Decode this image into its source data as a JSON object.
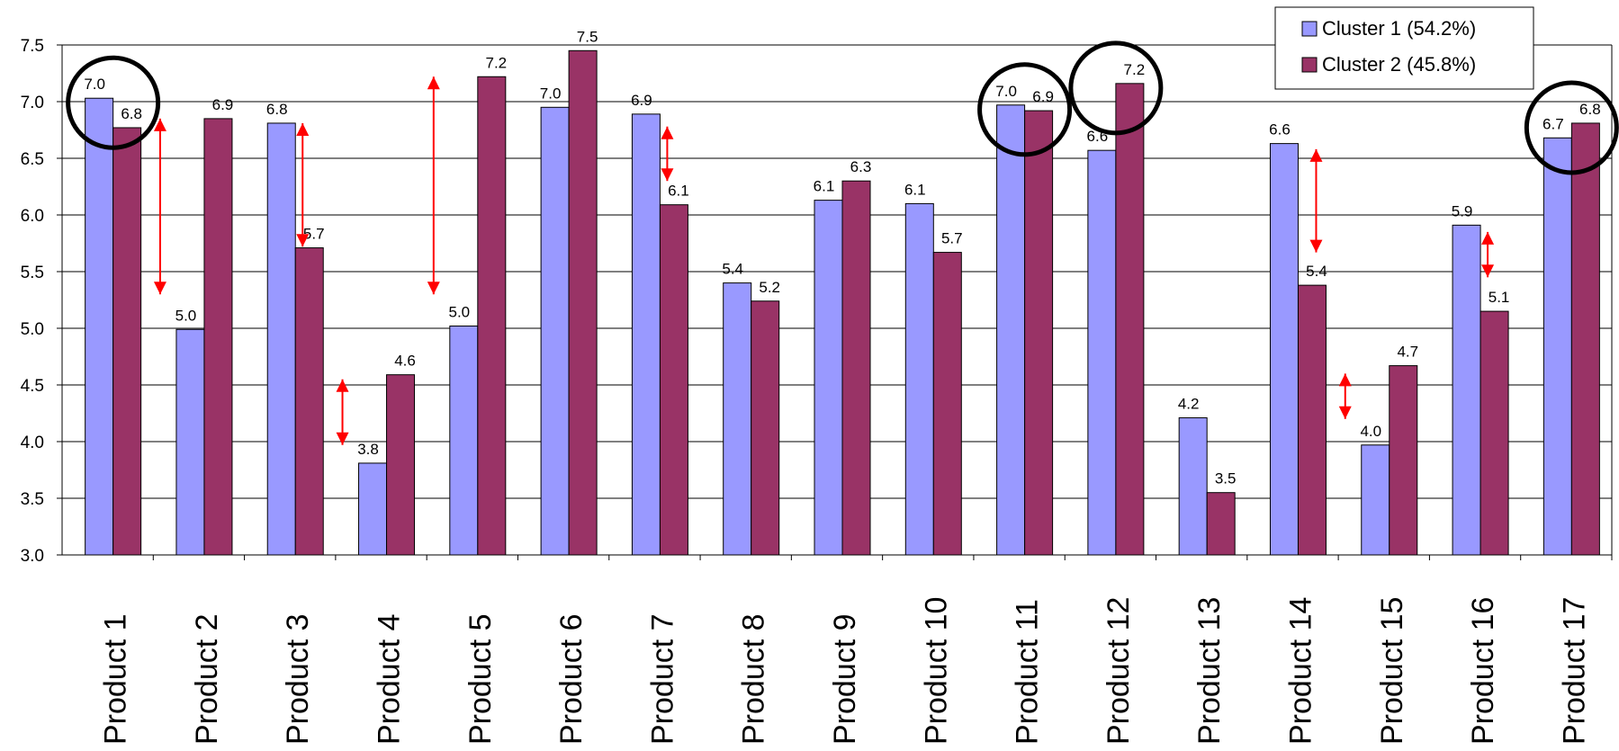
{
  "chart_data": {
    "type": "bar",
    "categories": [
      "Product 1",
      "Product 2",
      "Product 3",
      "Product 4",
      "Product 5",
      "Product 6",
      "Product 7",
      "Product 8",
      "Product 9",
      "Product 10",
      "Product 11",
      "Product 12",
      "Product 13",
      "Product 14",
      "Product 15",
      "Product 16",
      "Product 17"
    ],
    "series": [
      {
        "name": "Cluster 1 (54.2%)",
        "color": "#9999FF",
        "values": [
          7.03,
          4.99,
          6.81,
          3.81,
          5.02,
          6.95,
          6.89,
          5.4,
          6.13,
          6.1,
          6.97,
          6.57,
          4.21,
          6.63,
          3.97,
          5.91,
          6.68
        ],
        "labels": [
          "7.0",
          "5.0",
          "6.8",
          "3.8",
          "5.0",
          "7.0",
          "6.9",
          "5.4",
          "6.1",
          "6.1",
          "7.0",
          "6.6",
          "4.2",
          "6.6",
          "4.0",
          "5.9",
          "6.7"
        ]
      },
      {
        "name": "Cluster 2 (45.8%)",
        "color": "#993366",
        "values": [
          6.77,
          6.85,
          5.71,
          4.59,
          7.22,
          7.45,
          6.09,
          5.24,
          6.3,
          5.67,
          6.92,
          7.16,
          3.55,
          5.38,
          4.67,
          5.15,
          6.81
        ],
        "labels": [
          "6.8",
          "6.9",
          "5.7",
          "4.6",
          "7.2",
          "7.5",
          "6.1",
          "5.2",
          "6.3",
          "5.7",
          "6.9",
          "7.2",
          "3.5",
          "5.4",
          "4.7",
          "5.1",
          "6.8"
        ]
      }
    ],
    "yticks": [
      "3.0",
      "3.5",
      "4.0",
      "4.5",
      "5.0",
      "5.5",
      "6.0",
      "6.5",
      "7.0",
      "7.5"
    ],
    "ylim": [
      3.0,
      7.5
    ],
    "grid": true,
    "legend_position": "top-right",
    "circled_categories": [
      0,
      10,
      11,
      16
    ],
    "arrows": [
      {
        "category": 1,
        "from": 6.85,
        "to": 5.3
      },
      {
        "category": 2,
        "from": 6.81,
        "to": 5.72
      },
      {
        "category": 3,
        "from": 4.55,
        "to": 3.97
      },
      {
        "category": 4,
        "from": 7.22,
        "to": 5.3
      },
      {
        "category": 6,
        "from": 6.78,
        "to": 6.3
      },
      {
        "category": 13,
        "from": 6.58,
        "to": 5.67
      },
      {
        "category": 14,
        "from": 4.6,
        "to": 4.2
      },
      {
        "category": 15,
        "from": 5.85,
        "to": 5.45
      }
    ],
    "arrow_color": "#FF0000"
  }
}
